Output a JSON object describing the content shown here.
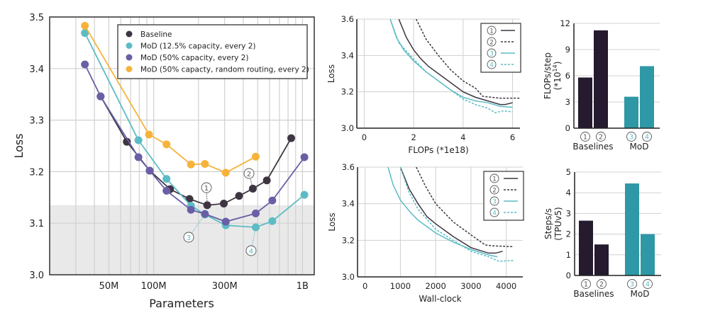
{
  "colors": {
    "baseline": "#3f3542",
    "mod_12_5": "#5cbcc5",
    "mod_50": "#6a5fa6",
    "mod_random": "#f6b33c",
    "bar_dark": "#251a2e",
    "bar_teal": "#2f98a6",
    "shade": "#e9e9e9",
    "grid": "#d0d0d0"
  },
  "chart_data": [
    {
      "id": "main",
      "type": "scatter",
      "xlabel": "Parameters",
      "ylabel": "Loss",
      "xscale": "log",
      "xlim": [
        20000000,
        1200000000
      ],
      "ylim": [
        3.0,
        3.5
      ],
      "xticks": [
        {
          "v": 50000000,
          "label": "50M"
        },
        {
          "v": 100000000,
          "label": "100M"
        },
        {
          "v": 300000000,
          "label": "300M"
        },
        {
          "v": 1000000000,
          "label": "1B"
        }
      ],
      "yticks": [
        {
          "v": 3.0,
          "label": "3.0"
        },
        {
          "v": 3.1,
          "label": "3.1"
        },
        {
          "v": 3.2,
          "label": "3.2"
        },
        {
          "v": 3.3,
          "label": "3.3"
        },
        {
          "v": 3.4,
          "label": "3.4"
        },
        {
          "v": 3.5,
          "label": "3.5"
        }
      ],
      "grid": true,
      "shaded_below": 3.135,
      "legend_position": "top-right",
      "series": [
        {
          "name": "Baseline",
          "color_key": "baseline",
          "x": [
            44000000,
            66000000,
            94000000,
            129000000,
            174000000,
            229000000,
            296000000,
            375000000,
            464000000,
            576000000,
            840000000
          ],
          "y": [
            3.346,
            3.258,
            3.202,
            3.166,
            3.147,
            3.135,
            3.138,
            3.153,
            3.167,
            3.183,
            3.265
          ]
        },
        {
          "name": "MoD (12.5% capacity, every 2)",
          "color_key": "mod_12_5",
          "x": [
            34500000,
            79000000,
            122000000,
            178000000,
            221000000,
            305000000,
            485000000,
            627000000,
            1030000000
          ],
          "y": [
            3.469,
            3.261,
            3.186,
            3.134,
            3.117,
            3.096,
            3.092,
            3.104,
            3.155
          ]
        },
        {
          "name": "MoD (50% capacity, every 2)",
          "color_key": "mod_50",
          "x": [
            34500000,
            44000000,
            79000000,
            94000000,
            122000000,
            178000000,
            221000000,
            305000000,
            485000000,
            627000000,
            1030000000
          ],
          "y": [
            3.408,
            3.346,
            3.228,
            3.202,
            3.163,
            3.126,
            3.118,
            3.103,
            3.119,
            3.144,
            3.228
          ]
        },
        {
          "name": "MoD (50% capacty, random routing, every 2)",
          "color_key": "mod_random",
          "x": [
            34500000,
            93000000,
            122000000,
            178000000,
            221000000,
            305000000,
            485000000
          ],
          "y": [
            3.483,
            3.272,
            3.253,
            3.214,
            3.215,
            3.198,
            3.229
          ]
        }
      ],
      "annotations": [
        {
          "label": "1",
          "series": "Baseline",
          "x": 229000000,
          "y": 3.135
        },
        {
          "label": "2",
          "series": "Baseline",
          "x": 464000000,
          "y": 3.167
        },
        {
          "label": "3",
          "series": "MoD (12.5% capacity, every 2)",
          "x": 221000000,
          "y": 3.117
        },
        {
          "label": "4",
          "series": "MoD (12.5% capacity, every 2)",
          "x": 485000000,
          "y": 3.092
        }
      ]
    },
    {
      "id": "flops",
      "type": "line",
      "xlabel": "FLOPs (*1e18)",
      "ylabel": "Loss",
      "xlim": [
        -0.3,
        6.3
      ],
      "ylim": [
        3.0,
        3.6
      ],
      "xticks": [
        {
          "v": 0,
          "label": "0"
        },
        {
          "v": 2,
          "label": "2"
        },
        {
          "v": 4,
          "label": "4"
        },
        {
          "v": 6,
          "label": "6"
        }
      ],
      "yticks": [
        {
          "v": 3.0,
          "label": "3.0"
        },
        {
          "v": 3.2,
          "label": "3.2"
        },
        {
          "v": 3.4,
          "label": "3.4"
        },
        {
          "v": 3.6,
          "label": "3.6"
        }
      ],
      "grid": true,
      "legend_position": "top-right",
      "series": [
        {
          "name": "1",
          "color_key": "baseline",
          "dashed": false,
          "x": [
            1.4,
            1.7,
            2.0,
            2.3,
            2.6,
            3.0,
            3.5,
            4.0,
            4.5,
            5.0,
            5.5,
            5.7,
            6.0
          ],
          "y": [
            3.6,
            3.5,
            3.43,
            3.38,
            3.34,
            3.3,
            3.25,
            3.2,
            3.17,
            3.15,
            3.13,
            3.13,
            3.14
          ]
        },
        {
          "name": "2",
          "color_key": "baseline",
          "dashed": true,
          "x": [
            2.1,
            2.5,
            3.0,
            3.5,
            4.0,
            4.5,
            4.8,
            5.5,
            6.3
          ],
          "y": [
            3.6,
            3.49,
            3.4,
            3.32,
            3.26,
            3.22,
            3.175,
            3.165,
            3.165
          ]
        },
        {
          "name": "3",
          "color_key": "mod_12_5",
          "dashed": false,
          "x": [
            1.05,
            1.3,
            1.6,
            2.0,
            2.5,
            3.0,
            3.5,
            4.0,
            4.5,
            5.0,
            5.5,
            6.0
          ],
          "y": [
            3.6,
            3.5,
            3.43,
            3.37,
            3.31,
            3.26,
            3.21,
            3.17,
            3.15,
            3.14,
            3.12,
            3.115
          ]
        },
        {
          "name": "4",
          "color_key": "mod_12_5",
          "dashed": true,
          "x": [
            1.05,
            1.4,
            2.0,
            2.5,
            3.0,
            3.5,
            4.0,
            4.5,
            5.0,
            5.3,
            5.6,
            6.0
          ],
          "y": [
            3.6,
            3.47,
            3.38,
            3.31,
            3.26,
            3.21,
            3.16,
            3.13,
            3.11,
            3.085,
            3.095,
            3.09
          ]
        }
      ]
    },
    {
      "id": "wallclock",
      "type": "line",
      "xlabel": "Wall-clock",
      "ylabel": "Loss",
      "xlim": [
        -215,
        4470
      ],
      "ylim": [
        3.0,
        3.6
      ],
      "xticks": [
        {
          "v": 0,
          "label": "0"
        },
        {
          "v": 1000,
          "label": "1000"
        },
        {
          "v": 2000,
          "label": "2000"
        },
        {
          "v": 3000,
          "label": "3000"
        },
        {
          "v": 4000,
          "label": "4000"
        }
      ],
      "yticks": [
        {
          "v": 3.0,
          "label": "3.0"
        },
        {
          "v": 3.2,
          "label": "3.2"
        },
        {
          "v": 3.4,
          "label": "3.4"
        },
        {
          "v": 3.6,
          "label": "3.6"
        }
      ],
      "grid": true,
      "legend_position": "top-right",
      "series": [
        {
          "name": "1",
          "color_key": "baseline",
          "dashed": false,
          "x": [
            1000,
            1250,
            1500,
            1750,
            2000,
            2500,
            3000,
            3500,
            3700,
            3900
          ],
          "y": [
            3.6,
            3.48,
            3.4,
            3.33,
            3.29,
            3.22,
            3.16,
            3.13,
            3.13,
            3.14
          ]
        },
        {
          "name": "2",
          "color_key": "baseline",
          "dashed": true,
          "x": [
            1450,
            1700,
            2000,
            2500,
            3000,
            3400,
            3600,
            4200
          ],
          "y": [
            3.6,
            3.5,
            3.4,
            3.3,
            3.23,
            3.175,
            3.17,
            3.165
          ]
        },
        {
          "name": "3",
          "color_key": "mod_12_5",
          "dashed": false,
          "x": [
            650,
            800,
            1000,
            1250,
            1500,
            2000,
            2500,
            3000,
            3500,
            3750
          ],
          "y": [
            3.6,
            3.5,
            3.42,
            3.36,
            3.31,
            3.24,
            3.19,
            3.15,
            3.12,
            3.11
          ]
        },
        {
          "name": "4",
          "color_key": "mod_12_5",
          "dashed": true,
          "x": [
            1000,
            1250,
            1500,
            2000,
            2500,
            3000,
            3500,
            3800,
            4200
          ],
          "y": [
            3.6,
            3.46,
            3.37,
            3.26,
            3.2,
            3.14,
            3.11,
            3.085,
            3.09
          ]
        }
      ]
    },
    {
      "id": "flops_per_step",
      "type": "bar",
      "ylabel": [
        "FLOPs/step",
        "(*10",
        "14",
        ")"
      ],
      "ylim": [
        0,
        12
      ],
      "yticks": [
        {
          "v": 0,
          "label": "0"
        },
        {
          "v": 3,
          "label": "3"
        },
        {
          "v": 6,
          "label": "6"
        },
        {
          "v": 9,
          "label": "9"
        },
        {
          "v": 12,
          "label": "12"
        }
      ],
      "categories": [
        "1",
        "2",
        "3",
        "4"
      ],
      "groups": [
        "Baselines",
        "MoD"
      ],
      "values": [
        5.8,
        11.2,
        3.6,
        7.1
      ],
      "bar_color_keys": [
        "bar_dark",
        "bar_dark",
        "bar_teal",
        "bar_teal"
      ]
    },
    {
      "id": "steps_per_second",
      "type": "bar",
      "ylabel": [
        "Steps/s",
        "(TPUv5)"
      ],
      "ylim": [
        0,
        5
      ],
      "yticks": [
        {
          "v": 0,
          "label": "0"
        },
        {
          "v": 1,
          "label": "1"
        },
        {
          "v": 2,
          "label": "2"
        },
        {
          "v": 3,
          "label": "3"
        },
        {
          "v": 4,
          "label": "4"
        },
        {
          "v": 5,
          "label": "5"
        }
      ],
      "categories": [
        "1",
        "2",
        "3",
        "4"
      ],
      "groups": [
        "Baselines",
        "MoD"
      ],
      "values": [
        2.65,
        1.5,
        4.45,
        2.0
      ],
      "bar_color_keys": [
        "bar_dark",
        "bar_dark",
        "bar_teal",
        "bar_teal"
      ]
    }
  ]
}
